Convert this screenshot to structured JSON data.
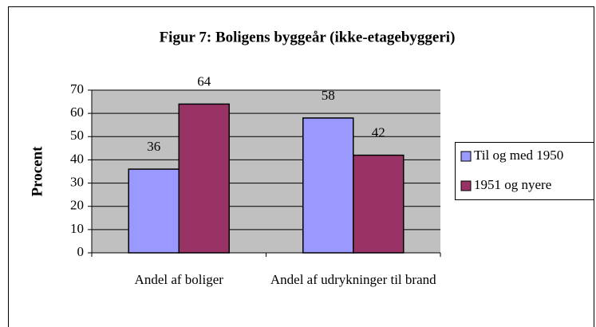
{
  "chart_data": {
    "type": "bar",
    "title": "Figur 7: Boligens byggeår (ikke-etagebyggeri)",
    "y_label": "Procent",
    "categories": [
      "Andel af boliger",
      "Andel af udrykninger til brand"
    ],
    "series": [
      {
        "name": "Til og med 1950",
        "color": "#9999ff",
        "values": [
          36,
          58
        ]
      },
      {
        "name": "1951 og nyere",
        "color": "#993366",
        "values": [
          64,
          42
        ]
      }
    ],
    "ylim": [
      0,
      70
    ],
    "yticks": [
      0,
      10,
      20,
      30,
      40,
      50,
      60,
      70
    ],
    "grid": true,
    "legend": "right"
  }
}
